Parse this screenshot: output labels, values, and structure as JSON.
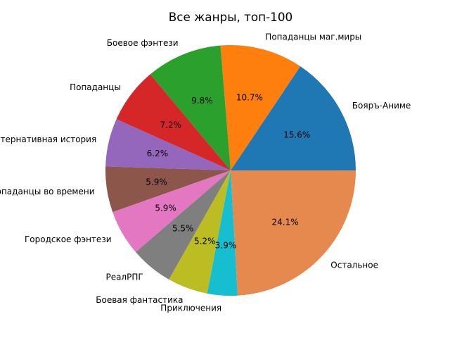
{
  "chart_data": {
    "type": "pie",
    "title": "Все жанры, топ-100",
    "start_angle_deg": 0,
    "direction": "counterclockwise",
    "slices": [
      {
        "label": "Бояръ-Аниме",
        "value": 15.6,
        "pct_label": "15.6%",
        "color": "#1f77b4"
      },
      {
        "label": "Попаданцы маг.миры",
        "value": 10.7,
        "pct_label": "10.7%",
        "color": "#ff7f0e"
      },
      {
        "label": "Боевое фэнтези",
        "value": 9.8,
        "pct_label": "9.8%",
        "color": "#2ca02c"
      },
      {
        "label": "Попаданцы",
        "value": 7.2,
        "pct_label": "7.2%",
        "color": "#d62728"
      },
      {
        "label": "Альтернативная история",
        "value": 6.2,
        "pct_label": "6.2%",
        "color": "#9467bd"
      },
      {
        "label": "Попаданцы во времени",
        "value": 5.9,
        "pct_label": "5.9%",
        "color": "#8c564b"
      },
      {
        "label": "Городское фэнтези",
        "value": 5.9,
        "pct_label": "5.9%",
        "color": "#e377c2"
      },
      {
        "label": "РеалРПГ",
        "value": 5.5,
        "pct_label": "5.5%",
        "color": "#7f7f7f"
      },
      {
        "label": "Боевая фантастика",
        "value": 5.2,
        "pct_label": "5.2%",
        "color": "#bcbd22"
      },
      {
        "label": "Приключения",
        "value": 3.9,
        "pct_label": "3.9%",
        "color": "#17becf"
      },
      {
        "label": "Остальное",
        "value": 24.1,
        "pct_label": "24.1%",
        "color": "#e6894f"
      }
    ]
  }
}
